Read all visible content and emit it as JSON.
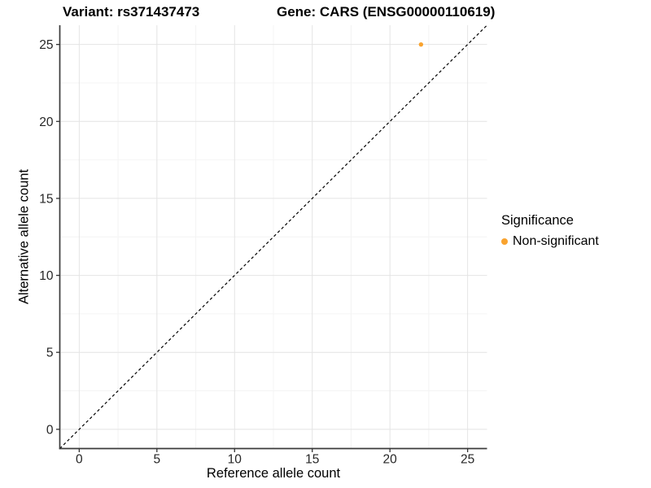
{
  "chart_data": {
    "type": "scatter",
    "titles": {
      "variant": "Variant: rs371437473",
      "gene": "Gene: CARS (ENSG00000110619)"
    },
    "xlabel": "Reference allele count",
    "ylabel": "Alternative allele count",
    "xlim": [
      -1.25,
      26.25
    ],
    "ylim": [
      -1.25,
      26.25
    ],
    "x_ticks": [
      0,
      5,
      10,
      15,
      20,
      25
    ],
    "y_ticks": [
      0,
      5,
      10,
      15,
      20,
      25
    ],
    "minor_ticks": [
      2.5,
      7.5,
      12.5,
      17.5,
      22.5
    ],
    "grid": true,
    "points": [
      {
        "x": 22,
        "y": 25,
        "series": "Non-significant",
        "color": "#F9A32F"
      }
    ],
    "reference_line": {
      "style": "dashed",
      "from": [
        -1.25,
        -1.25
      ],
      "to": [
        26.25,
        26.25
      ],
      "color": "#000000"
    },
    "legend": {
      "title": "Significance",
      "position": "right",
      "items": [
        {
          "label": "Non-significant",
          "color": "#F9A32F"
        }
      ]
    },
    "colors": {
      "background": "#FFFFFF",
      "grid_major": "#E4E4E4",
      "grid_minor": "#F4F4F4",
      "axis_line": "#3B3B3B",
      "tick_mark": "#333333",
      "tick_label": "#262626"
    }
  }
}
